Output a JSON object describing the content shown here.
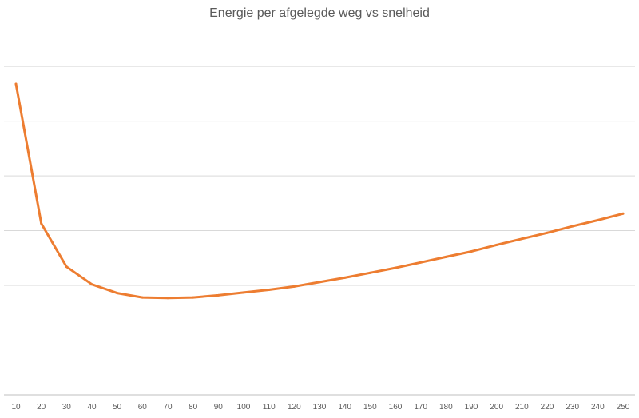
{
  "chart_data": {
    "type": "line",
    "title": "Energie per afgelegde weg vs snelheid",
    "xlabel": "",
    "ylabel": "",
    "x": [
      10,
      20,
      30,
      40,
      50,
      60,
      70,
      80,
      90,
      100,
      110,
      120,
      130,
      140,
      150,
      160,
      170,
      180,
      190,
      200,
      210,
      220,
      230,
      240,
      250
    ],
    "series": [
      {
        "values": [
          5.68,
          3.13,
          2.34,
          2.02,
          1.86,
          1.78,
          1.77,
          1.78,
          1.82,
          1.87,
          1.92,
          1.98,
          2.06,
          2.14,
          2.23,
          2.32,
          2.42,
          2.52,
          2.62,
          2.74,
          2.85,
          2.96,
          3.08,
          3.19,
          3.31
        ],
        "color": "#ED7D31"
      }
    ],
    "ylim": [
      0,
      6.6
    ],
    "ygrid_step": 1,
    "grid": true,
    "show_y_tick_labels": false
  }
}
